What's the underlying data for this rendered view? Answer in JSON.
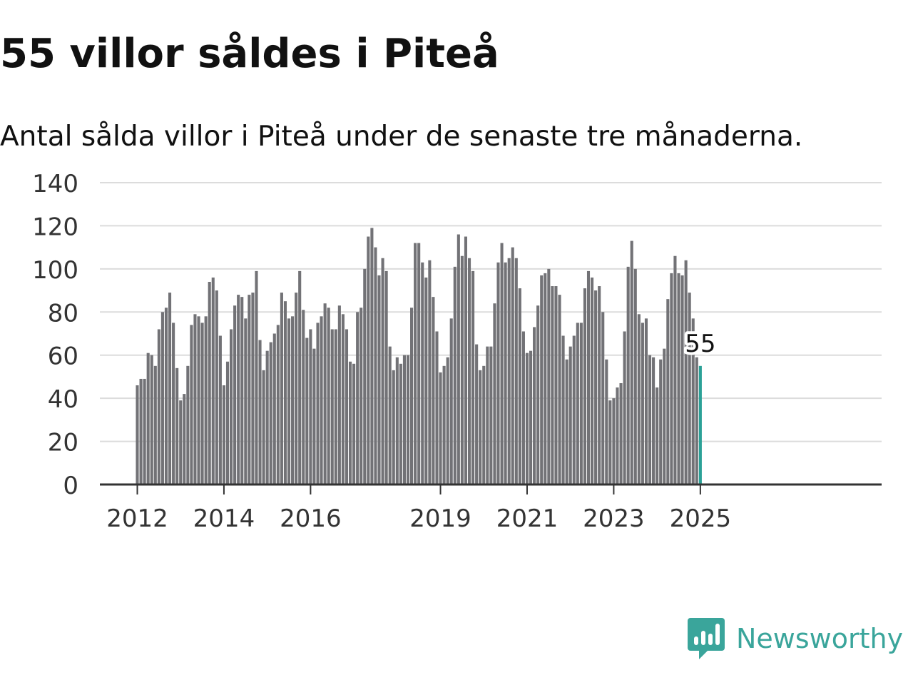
{
  "title": "55 villor såldes i Piteå",
  "subtitle": "Antal sålda villor i Piteå under de senaste tre månaderna.",
  "brand": {
    "name": "Newsworthy",
    "logo_icon": "newsworthy-chart-bubble-logo",
    "color": "#3aa59b"
  },
  "colors": {
    "bar": "#727276",
    "highlight": "#2ba197",
    "grid": "#dcdcdc",
    "axis": "#333333",
    "text": "#111111"
  },
  "chart_data": {
    "type": "bar",
    "x_start": "2012-01",
    "y_ticks": [
      0,
      20,
      40,
      60,
      80,
      100,
      120,
      140
    ],
    "ylim": [
      0,
      140
    ],
    "x_ticks": [
      {
        "label": "2012",
        "index": 0
      },
      {
        "label": "2014",
        "index": 24
      },
      {
        "label": "2016",
        "index": 48
      },
      {
        "label": "2019",
        "index": 84
      },
      {
        "label": "2021",
        "index": 108
      },
      {
        "label": "2023",
        "index": 132
      },
      {
        "label": "2025",
        "index": 156
      }
    ],
    "grid": true,
    "values": [
      46,
      49,
      49,
      61,
      60,
      55,
      72,
      80,
      82,
      89,
      75,
      54,
      39,
      42,
      55,
      74,
      79,
      78,
      75,
      78,
      94,
      96,
      90,
      69,
      46,
      57,
      72,
      83,
      88,
      87,
      77,
      88,
      89,
      99,
      67,
      53,
      62,
      66,
      70,
      74,
      89,
      85,
      77,
      78,
      89,
      99,
      81,
      68,
      72,
      63,
      75,
      78,
      84,
      82,
      72,
      72,
      83,
      79,
      72,
      57,
      56,
      80,
      82,
      100,
      115,
      119,
      110,
      97,
      105,
      99,
      64,
      53,
      59,
      56,
      60,
      60,
      82,
      112,
      112,
      103,
      96,
      104,
      87,
      71,
      52,
      55,
      59,
      77,
      101,
      116,
      106,
      115,
      105,
      99,
      65,
      53,
      55,
      64,
      64,
      84,
      103,
      112,
      103,
      105,
      110,
      105,
      91,
      71,
      61,
      62,
      73,
      83,
      97,
      98,
      100,
      92,
      92,
      88,
      69,
      58,
      64,
      69,
      75,
      75,
      91,
      99,
      96,
      90,
      92,
      80,
      58,
      39,
      40,
      45,
      47,
      71,
      101,
      113,
      100,
      79,
      75,
      77,
      60,
      59,
      45,
      58,
      63,
      86,
      98,
      106,
      98,
      97,
      104,
      89,
      77,
      59,
      55
    ],
    "highlight_label": "55"
  }
}
